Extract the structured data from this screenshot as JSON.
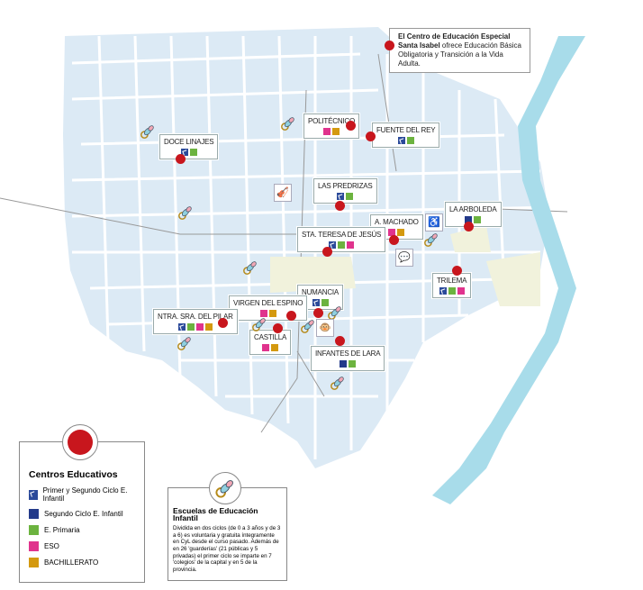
{
  "note": {
    "bold": "El Centro de Educación Especial Santa Isabel",
    "text": " ofrece Educación Básica Obligatoria y Transición a la Vida Adulta."
  },
  "colors": {
    "primer_segundo_infantil": "#2b4a9a",
    "segundo_infantil": "#233a8a",
    "primaria": "#6cb33f",
    "eso": "#e0338d",
    "bachillerato": "#d4990f",
    "school_dot": "#c8161d",
    "river": "#a8dcea",
    "city": "#dceaf5"
  },
  "schools": [
    {
      "name": "DOCE LINAJES",
      "levels": [
        "c1",
        "c3"
      ]
    },
    {
      "name": "POLITÉCNICO",
      "levels": [
        "c4",
        "c5"
      ]
    },
    {
      "name": "FUENTE DEL REY",
      "levels": [
        "c1",
        "c3"
      ]
    },
    {
      "name": "LAS PREDRIZAS",
      "levels": [
        "c1",
        "c3"
      ]
    },
    {
      "name": "LA ARBOLEDA",
      "levels": [
        "c2",
        "c3"
      ]
    },
    {
      "name": "A. MACHADO",
      "levels": [
        "c4",
        "c5"
      ]
    },
    {
      "name": "STA. TERESA DE JESÚS",
      "levels": [
        "c1",
        "c3",
        "c4"
      ]
    },
    {
      "name": "TRILEMA",
      "levels": [
        "c1",
        "c3",
        "c4"
      ]
    },
    {
      "name": "NUMANCIA",
      "levels": [
        "c1",
        "c3"
      ]
    },
    {
      "name": "VIRGEN DEL ESPINO",
      "levels": [
        "c4",
        "c5"
      ]
    },
    {
      "name": "NTRA. SRA. DEL PILAR",
      "levels": [
        "c1",
        "c3",
        "c4",
        "c5"
      ]
    },
    {
      "name": "CASTILLA",
      "levels": [
        "c4",
        "c5"
      ]
    },
    {
      "name": "INFANTES DE LARA",
      "levels": [
        "c2",
        "c3"
      ]
    }
  ],
  "legend": {
    "title": "Centros Educativos",
    "items": [
      {
        "label": "Primer y Segundo Ciclo E. Infantil",
        "cls": "c1"
      },
      {
        "label": "Segundo Ciclo E. Infantil",
        "cls": "c2"
      },
      {
        "label": "E. Primaria",
        "cls": "c3"
      },
      {
        "label": "ESO",
        "cls": "c4"
      },
      {
        "label": "BACHILLERATO",
        "cls": "c5"
      }
    ]
  },
  "infantil": {
    "title": "Escuelas de Educación Infantil",
    "text": "Dividida en dos ciclos (de 0 a 3 años y de 3 a 6) es voluntaria y gratuita íntegramente en CyL desde el curso pasado. Además de en 26 'guarderías' (21 públicas y 5 privadas) el primer ciclo se imparte en 7 'colegios' de la capital y en 5 de la provincia."
  },
  "icons": {
    "nursery": "pacifier-icon",
    "music": "violin-icon",
    "special": "special-center-icon",
    "language": "chat-icon",
    "monkey": "monkey-icon"
  }
}
